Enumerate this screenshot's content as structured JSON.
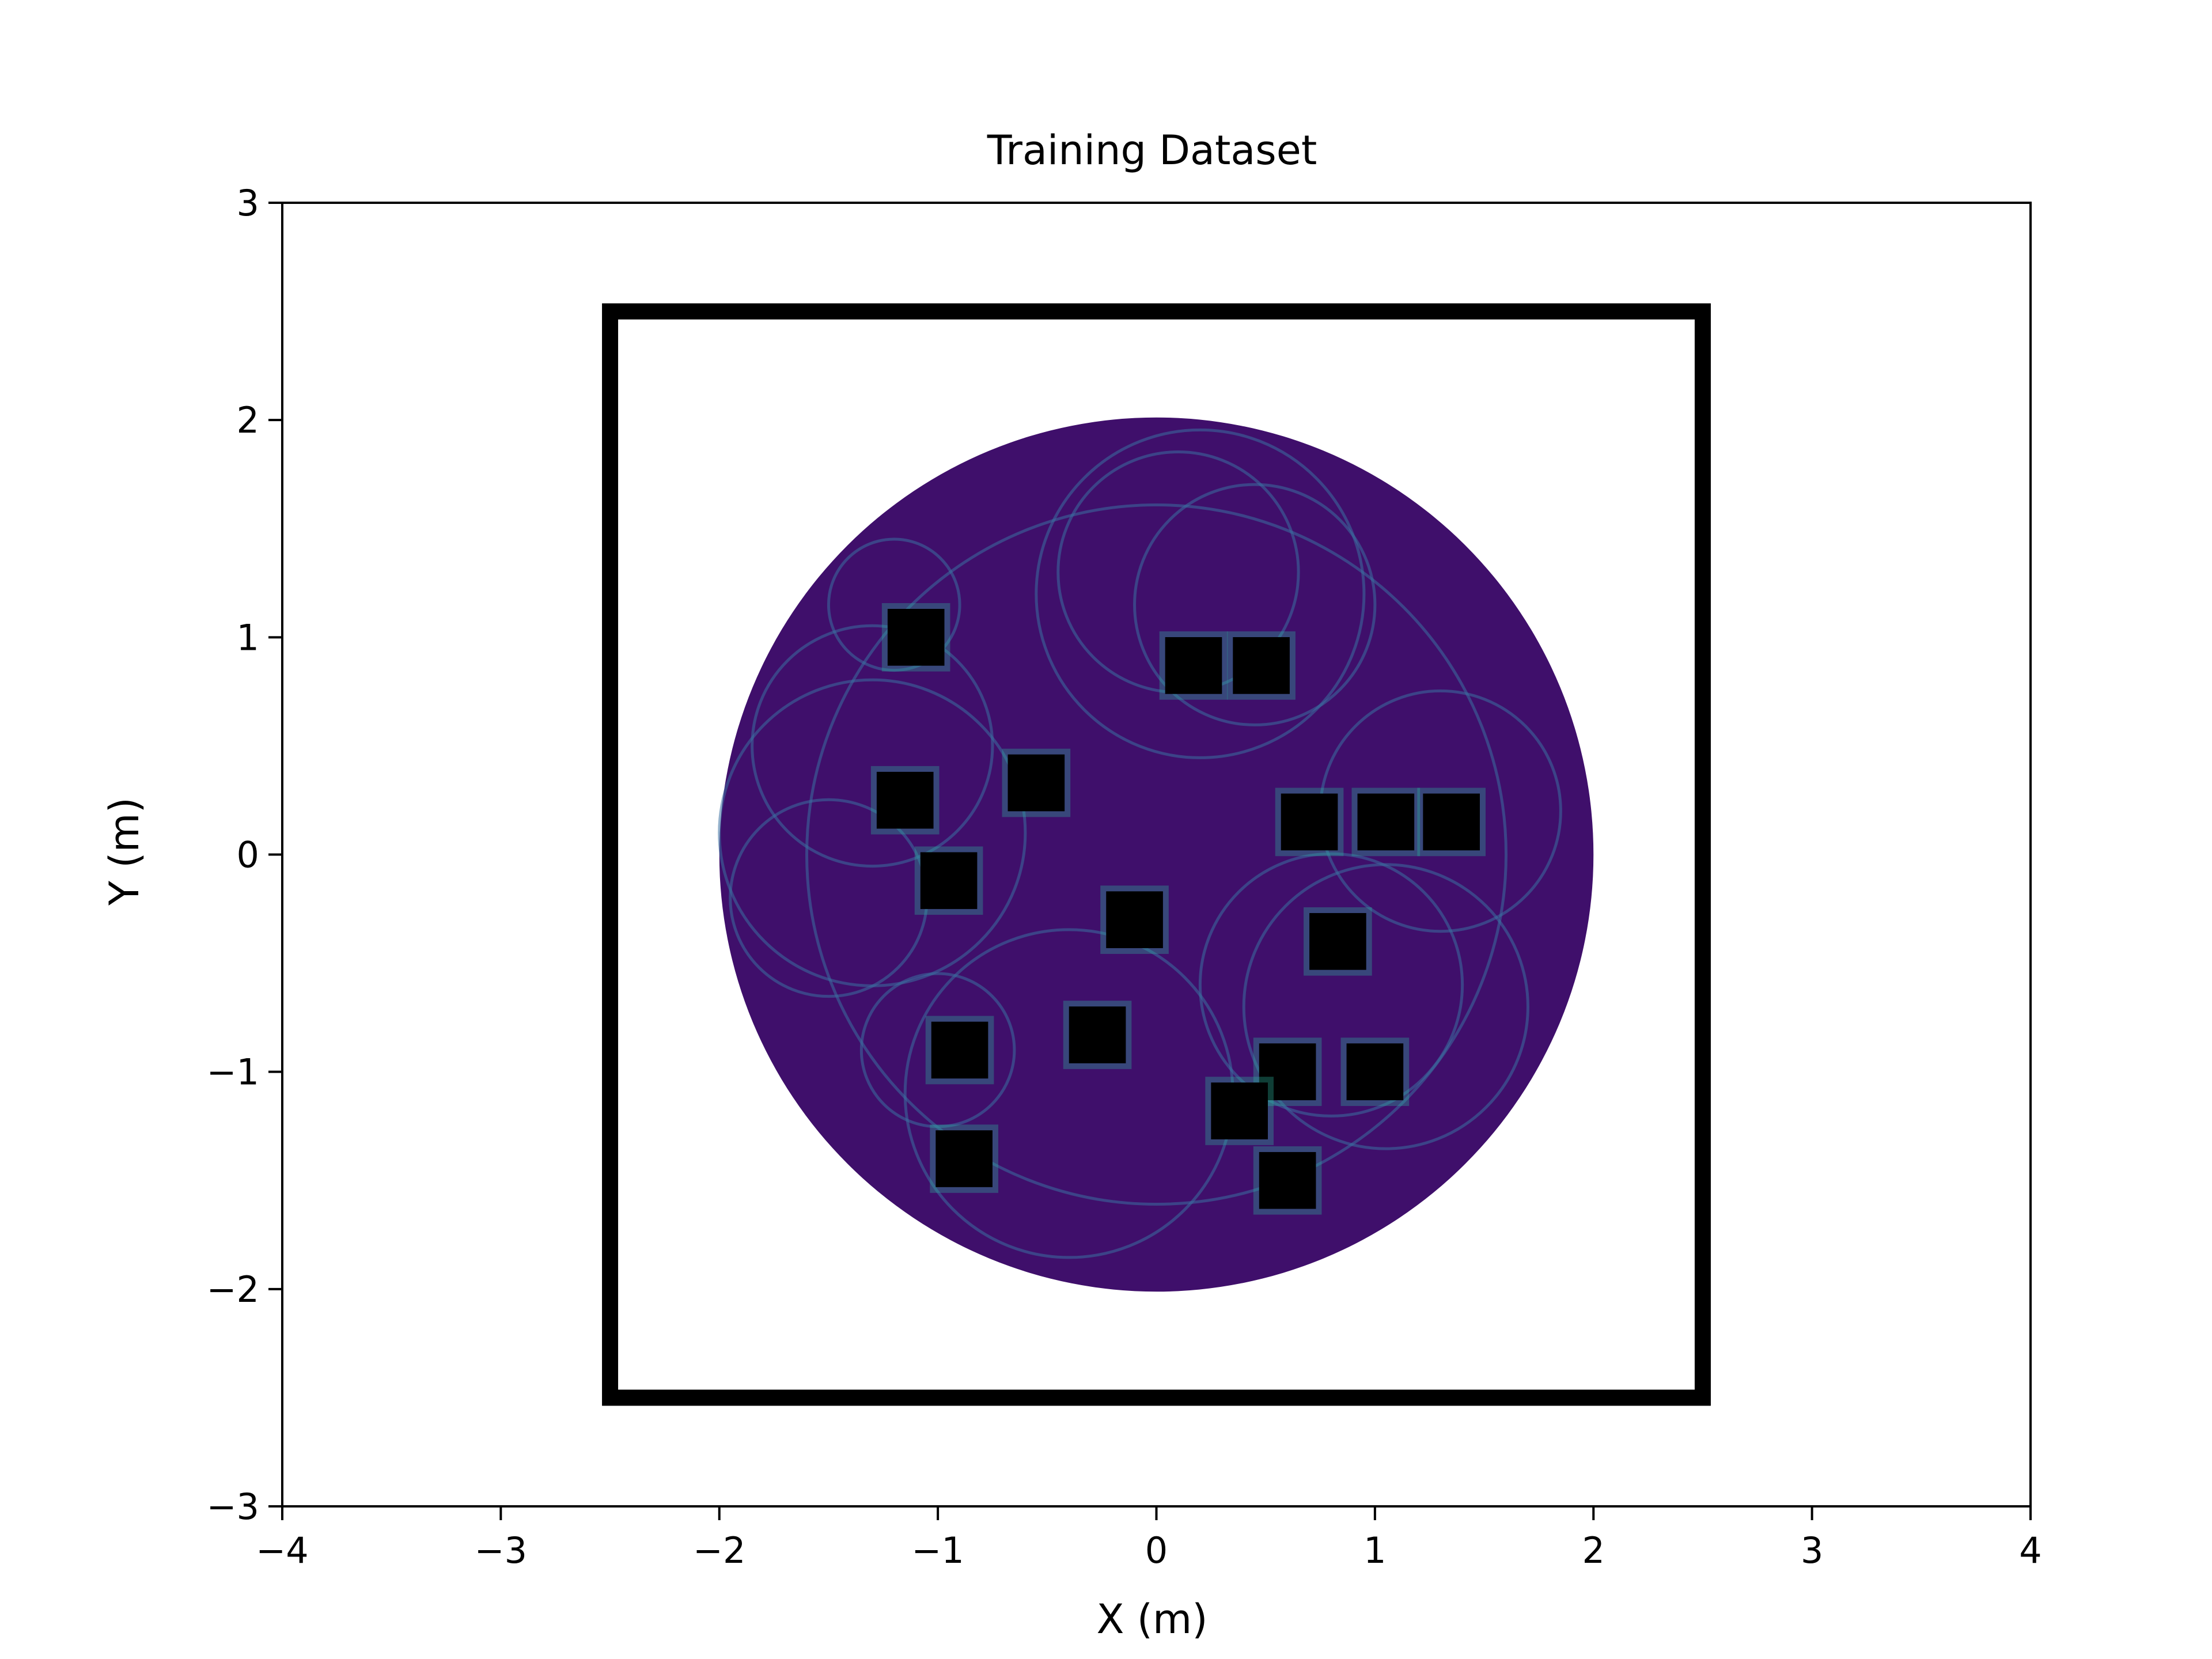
{
  "chart_data": {
    "type": "heatmap",
    "title": "Training Dataset",
    "xlabel": "X (m)",
    "ylabel": "Y (m)",
    "xlim": [
      -4.0,
      4.0
    ],
    "ylim": [
      -3.0,
      3.0
    ],
    "xticks": [
      {
        "value": -4,
        "label": "−4"
      },
      {
        "value": -3,
        "label": "−3"
      },
      {
        "value": -2,
        "label": "−2"
      },
      {
        "value": -1,
        "label": "−1"
      },
      {
        "value": 0,
        "label": "0"
      },
      {
        "value": 1,
        "label": "1"
      },
      {
        "value": 2,
        "label": "2"
      },
      {
        "value": 3,
        "label": "3"
      },
      {
        "value": 4,
        "label": "4"
      }
    ],
    "yticks": [
      {
        "value": -3,
        "label": "−3"
      },
      {
        "value": -2,
        "label": "−2"
      },
      {
        "value": -1,
        "label": "−1"
      },
      {
        "value": 0,
        "label": "0"
      },
      {
        "value": 1,
        "label": "1"
      },
      {
        "value": 2,
        "label": "2"
      },
      {
        "value": 3,
        "label": "3"
      }
    ],
    "grid": false,
    "legend": "none",
    "colormap": "viridis",
    "colors": {
      "background": "#ffffff",
      "density_fill": "#3f0f6b",
      "trajectory": "#3b6fa0",
      "hotspot": "#2bb39a",
      "highlight": "#fde725",
      "obstacle": "#000000",
      "boundary": "#000000"
    },
    "boundary": {
      "x": [
        -2.5,
        2.5
      ],
      "y": [
        -2.5,
        2.5
      ]
    },
    "density_region": {
      "center": [
        0.0,
        0.0
      ],
      "radius": 2.0
    },
    "obstacles": [
      {
        "x": -1.1,
        "y": 1.0
      },
      {
        "x": 0.17,
        "y": 0.87
      },
      {
        "x": 0.48,
        "y": 0.87
      },
      {
        "x": -1.15,
        "y": 0.25
      },
      {
        "x": -0.55,
        "y": 0.33
      },
      {
        "x": 0.7,
        "y": 0.15
      },
      {
        "x": 1.05,
        "y": 0.15
      },
      {
        "x": 1.35,
        "y": 0.15
      },
      {
        "x": -0.95,
        "y": -0.12
      },
      {
        "x": -0.1,
        "y": -0.3
      },
      {
        "x": 0.83,
        "y": -0.4
      },
      {
        "x": -0.9,
        "y": -0.9
      },
      {
        "x": -0.27,
        "y": -0.83
      },
      {
        "x": 0.6,
        "y": -1.0
      },
      {
        "x": 1.0,
        "y": -1.0
      },
      {
        "x": 0.38,
        "y": -1.18
      },
      {
        "x": -0.88,
        "y": -1.4
      },
      {
        "x": 0.6,
        "y": -1.5
      }
    ],
    "trajectory_loops": [
      {
        "cx": 0.2,
        "cy": 1.2,
        "r": 0.75
      },
      {
        "cx": 0.45,
        "cy": 1.15,
        "r": 0.55
      },
      {
        "cx": 0.1,
        "cy": 1.3,
        "r": 0.55
      },
      {
        "cx": -1.3,
        "cy": 0.5,
        "r": 0.55
      },
      {
        "cx": -1.3,
        "cy": 0.1,
        "r": 0.7
      },
      {
        "cx": -1.5,
        "cy": -0.2,
        "r": 0.45
      },
      {
        "cx": -0.4,
        "cy": -1.1,
        "r": 0.75
      },
      {
        "cx": 0.8,
        "cy": -0.6,
        "r": 0.6
      },
      {
        "cx": 1.3,
        "cy": 0.2,
        "r": 0.55
      },
      {
        "cx": 1.05,
        "cy": -0.7,
        "r": 0.65
      },
      {
        "cx": -1.0,
        "cy": -0.9,
        "r": 0.35
      },
      {
        "cx": -1.2,
        "cy": 1.15,
        "r": 0.3
      },
      {
        "cx": 0.0,
        "cy": 0.0,
        "r": 1.6
      }
    ]
  }
}
